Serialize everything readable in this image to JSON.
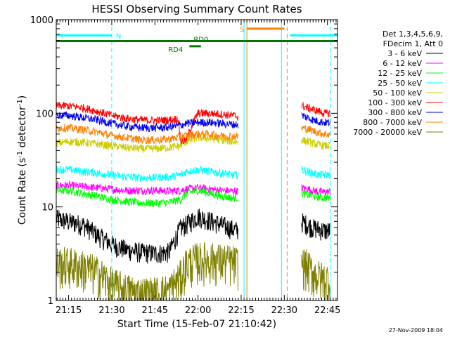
{
  "chart_data": {
    "type": "line",
    "title": "HESSI Observing Summary Count Rates",
    "xlabel": "Start Time (15-Feb-07 21:10:42)",
    "ylabel_main": "Count Rate (s",
    "ylabel_sup1": "-1",
    "ylabel_mid": " detector",
    "ylabel_sup2": "-1",
    "ylabel_end": ")",
    "y_scale": "log",
    "ylim": [
      1,
      1000
    ],
    "xlim": [
      "21:10:42",
      "22:48:30"
    ],
    "x_ticks": [
      "21:15",
      "21:30",
      "21:45",
      "22:00",
      "22:15",
      "22:30",
      "22:45"
    ],
    "y_ticks": [
      "1",
      "10",
      "100",
      "1000"
    ],
    "footer": "27-Nov-2009 18:04",
    "legend": {
      "header1": "Det 1,3,4,5,6,9,",
      "header2": "FDecim 1, Att 0",
      "placement": "right"
    },
    "colors": {
      "black": "#000000",
      "magenta": "#ff00ff",
      "green": "#00ff00",
      "yellow": "#cccc00",
      "red": "#ff0000",
      "blue": "#0000ee",
      "cyan": "#00ffff",
      "orange": "#ff8000",
      "olive": "#808000",
      "darkgreen": "#007700"
    },
    "series": [
      {
        "name": "3 - 6 keV",
        "color": "#000000",
        "x": [
          "21:10:42",
          "21:15",
          "21:20",
          "21:25",
          "21:30",
          "21:35",
          "21:40",
          "21:45",
          "21:50",
          "21:52",
          "21:54",
          "21:56",
          "22:00",
          "22:04",
          "22:08",
          "22:12",
          "22:14"
        ],
        "y": [
          7.5,
          7,
          6.5,
          5,
          4,
          3.5,
          3.3,
          3.2,
          3.3,
          4.5,
          6,
          6.5,
          8,
          7.2,
          6.5,
          5.8,
          5.6
        ]
      },
      {
        "name": "6 - 12 keV",
        "color": "#ff00ff",
        "x": [
          "21:10:42",
          "21:15",
          "21:20",
          "21:25",
          "21:30",
          "21:35",
          "21:40",
          "21:45",
          "21:50",
          "21:54",
          "21:56",
          "22:00",
          "22:04",
          "22:08",
          "22:12",
          "22:14"
        ],
        "y": [
          17,
          17,
          16.5,
          16,
          15.5,
          15,
          15,
          15,
          14.8,
          15,
          15.5,
          16,
          15.5,
          15,
          14.8,
          14.8
        ]
      },
      {
        "name": "12 - 25 keV",
        "color": "#00ff00",
        "x": [
          "21:10:42",
          "21:15",
          "21:20",
          "21:25",
          "21:30",
          "21:35",
          "21:40",
          "21:45",
          "21:50",
          "21:54",
          "21:56",
          "22:00",
          "22:04",
          "22:08",
          "22:12",
          "22:14"
        ],
        "y": [
          15,
          15,
          14,
          13,
          12,
          11.5,
          11,
          11,
          11.2,
          12,
          14,
          15,
          14,
          13,
          12.5,
          12.5
        ]
      },
      {
        "name": "25 - 50 keV",
        "color": "#00ffff",
        "x": [
          "21:10:42",
          "21:15",
          "21:20",
          "21:25",
          "21:30",
          "21:35",
          "21:40",
          "21:45",
          "21:50",
          "21:54",
          "21:56",
          "22:00",
          "22:04",
          "22:08",
          "22:12",
          "22:14"
        ],
        "y": [
          25,
          25,
          24,
          23,
          22,
          21,
          20.5,
          20.5,
          21,
          22,
          24,
          25,
          24,
          23,
          22,
          22
        ]
      },
      {
        "name": "50 - 100 keV",
        "color": "#cccc00",
        "x": [
          "21:10:42",
          "21:15",
          "21:20",
          "21:25",
          "21:30",
          "21:35",
          "21:40",
          "21:45",
          "21:50",
          "21:54",
          "21:56",
          "22:00",
          "22:04",
          "22:08",
          "22:12",
          "22:14"
        ],
        "y": [
          48,
          50,
          49,
          47,
          45,
          43,
          42,
          42,
          43,
          45,
          50,
          55,
          54,
          52,
          50,
          49
        ]
      },
      {
        "name": "100 - 300 keV",
        "color": "#ff0000",
        "x": [
          "21:10:42",
          "21:15",
          "21:20",
          "21:25",
          "21:30",
          "21:35",
          "21:40",
          "21:45",
          "21:50",
          "21:53",
          "21:54",
          "21:56",
          "22:00",
          "22:04",
          "22:08",
          "22:12",
          "22:14"
        ],
        "y": [
          120,
          120,
          115,
          105,
          95,
          88,
          85,
          84,
          85,
          88,
          50,
          52,
          100,
          100,
          98,
          95,
          92
        ]
      },
      {
        "name": "300 - 800 keV",
        "color": "#0000ee",
        "x": [
          "21:10:42",
          "21:15",
          "21:20",
          "21:25",
          "21:30",
          "21:35",
          "21:40",
          "21:45",
          "21:50",
          "21:54",
          "21:56",
          "22:00",
          "22:04",
          "22:08",
          "22:12",
          "22:14"
        ],
        "y": [
          95,
          95,
          90,
          85,
          78,
          73,
          70,
          70,
          71,
          75,
          78,
          80,
          80,
          78,
          76,
          76
        ]
      },
      {
        "name": "800 - 7000 keV",
        "color": "#ff8000",
        "x": [
          "21:10:42",
          "21:15",
          "21:20",
          "21:25",
          "21:30",
          "21:35",
          "21:40",
          "21:45",
          "21:50",
          "21:54",
          "21:56",
          "22:00",
          "22:04",
          "22:08",
          "22:12",
          "22:14"
        ],
        "y": [
          70,
          70,
          67,
          63,
          58,
          55,
          52,
          52,
          53,
          56,
          58,
          60,
          60,
          58,
          57,
          57
        ]
      },
      {
        "name": "7000 - 20000 keV",
        "color": "#808000",
        "x": [
          "21:10:42",
          "21:15",
          "21:20",
          "21:25",
          "21:30",
          "21:35",
          "21:40",
          "21:45",
          "21:50",
          "21:54",
          "21:56",
          "22:00",
          "22:04",
          "22:08",
          "22:12",
          "22:14"
        ],
        "y": [
          2.5,
          2.5,
          2.3,
          2,
          1.5,
          1.3,
          1.2,
          1.2,
          1.3,
          1.8,
          2.5,
          2.8,
          2.8,
          2.7,
          2.6,
          2.5
        ]
      }
    ],
    "series_after_gap": {
      "x": [
        "22:36",
        "22:38",
        "22:40",
        "22:42",
        "22:44",
        "22:46"
      ],
      "black": [
        7,
        6.5,
        6,
        5.8,
        5.6,
        5.6
      ],
      "magenta": [
        16,
        15.5,
        15,
        14.5,
        14.5,
        14.5
      ],
      "green": [
        14,
        13.5,
        13,
        12.8,
        12.5,
        12.5
      ],
      "cyan": [
        25,
        24,
        23,
        22,
        22,
        22
      ],
      "yellow": [
        52,
        50,
        48,
        46,
        45,
        45
      ],
      "red": [
        120,
        115,
        110,
        105,
        100,
        100
      ],
      "blue": [
        95,
        90,
        85,
        82,
        80,
        80
      ],
      "orange": [
        70,
        68,
        65,
        62,
        60,
        60
      ],
      "olive": [
        2.5,
        2.3,
        2,
        1.8,
        1.7,
        1.7
      ]
    },
    "flags": [
      {
        "label": "N",
        "color": "#00ffff",
        "y": 680,
        "x_start": "21:10:42",
        "x_end": "21:30"
      },
      {
        "label": "",
        "color": "#00ffff",
        "y": 680,
        "x_start": "22:32",
        "x_end": "22:48:30"
      },
      {
        "label": "S",
        "color": "#ff8000",
        "y": 800,
        "x_start": "22:17",
        "x_end": "22:30"
      },
      {
        "label": "RD0",
        "color": "#007700",
        "y": 590,
        "x_start": "21:10:42",
        "x_end": "22:48:30"
      },
      {
        "label": "RD4",
        "color": "#007700",
        "y": 520,
        "x_start": "21:57",
        "x_end": "22:01"
      }
    ],
    "vlines": [
      {
        "x": "21:30",
        "color": "#00ffff",
        "dashed": true
      },
      {
        "x": "22:16",
        "color": "#00ffff",
        "dashed": false
      },
      {
        "x": "22:17",
        "color": "#ff8000",
        "dashed": false
      },
      {
        "x": "22:29",
        "color": "#00ffff",
        "dashed": false
      },
      {
        "x": "22:31",
        "color": "#ff8000",
        "dashed": true
      },
      {
        "x": "22:46",
        "color": "#00ffff",
        "dashed": true
      }
    ]
  }
}
